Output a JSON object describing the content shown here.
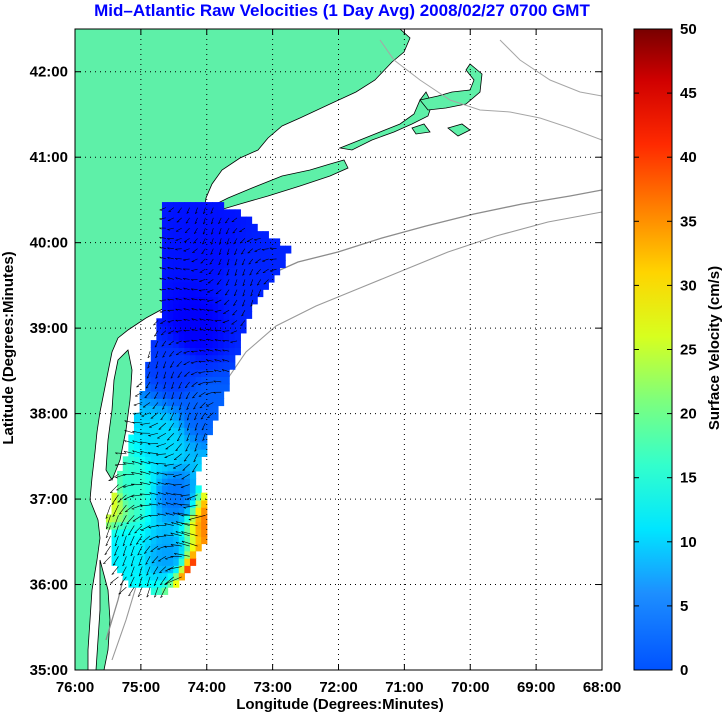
{
  "chart_data": {
    "type": "heatmap",
    "title": "Mid–Atlantic Raw Velocities (1 Day Avg) 2008/02/27 0700 GMT",
    "title_color": "#0000ff",
    "xlabel": "Longitude (Degrees:Minutes)",
    "ylabel": "Latitude (Degrees:Minutes)",
    "xlim": [
      -76,
      -68
    ],
    "ylim": [
      35,
      42.5
    ],
    "xticks": [
      {
        "value": -76,
        "label": "76:00"
      },
      {
        "value": -75,
        "label": "75:00"
      },
      {
        "value": -74,
        "label": "74:00"
      },
      {
        "value": -73,
        "label": "73:00"
      },
      {
        "value": -72,
        "label": "72:00"
      },
      {
        "value": -71,
        "label": "71:00"
      },
      {
        "value": -70,
        "label": "70:00"
      },
      {
        "value": -69,
        "label": "69:00"
      },
      {
        "value": -68,
        "label": "68:00"
      }
    ],
    "yticks": [
      {
        "value": 35,
        "label": "35:00"
      },
      {
        "value": 36,
        "label": "36:00"
      },
      {
        "value": 37,
        "label": "37:00"
      },
      {
        "value": 38,
        "label": "38:00"
      },
      {
        "value": 39,
        "label": "39:00"
      },
      {
        "value": 40,
        "label": "40:00"
      },
      {
        "value": 41,
        "label": "41:00"
      },
      {
        "value": 42,
        "label": "42:00"
      }
    ],
    "grid": "dotted",
    "land_color": "#5ef0a8",
    "colorbar": {
      "label": "Surface Velocity (cm/s)",
      "min": 0,
      "max": 50,
      "ticks": [
        {
          "value": 0,
          "label": "0"
        },
        {
          "value": 5,
          "label": "5"
        },
        {
          "value": 10,
          "label": "10"
        },
        {
          "value": 15,
          "label": "15"
        },
        {
          "value": 20,
          "label": "20"
        },
        {
          "value": 25,
          "label": "25"
        },
        {
          "value": 30,
          "label": "30"
        },
        {
          "value": 35,
          "label": "35"
        },
        {
          "value": 40,
          "label": "40"
        },
        {
          "value": 45,
          "label": "45"
        },
        {
          "value": 50,
          "label": "50"
        }
      ],
      "colormap": "jet"
    },
    "coverage_region": {
      "outline_lonlat": [
        [
          -74.7,
          40.45
        ],
        [
          -73.95,
          40.45
        ],
        [
          -73.55,
          40.3
        ],
        [
          -72.8,
          39.9
        ],
        [
          -72.95,
          39.6
        ],
        [
          -73.3,
          39.25
        ],
        [
          -73.55,
          38.75
        ],
        [
          -73.75,
          38.2
        ],
        [
          -74.0,
          37.7
        ],
        [
          -74.2,
          37.2
        ],
        [
          -74.0,
          36.85
        ],
        [
          -74.05,
          36.45
        ],
        [
          -74.45,
          36.0
        ],
        [
          -74.75,
          35.85
        ],
        [
          -75.2,
          35.95
        ],
        [
          -75.45,
          36.2
        ],
        [
          -75.55,
          36.7
        ],
        [
          -75.35,
          37.3
        ],
        [
          -75.05,
          38.1
        ],
        [
          -74.9,
          38.7
        ],
        [
          -74.7,
          39.3
        ],
        [
          -74.7,
          39.8
        ]
      ],
      "speed_blobs": [
        {
          "lon": -74.0,
          "lat": 39.9,
          "speed": 7
        },
        {
          "lon": -73.4,
          "lat": 39.5,
          "speed": 8
        },
        {
          "lon": -74.25,
          "lat": 38.95,
          "speed": 6
        },
        {
          "lon": -74.5,
          "lat": 38.5,
          "speed": 9
        },
        {
          "lon": -74.1,
          "lat": 38.0,
          "speed": 11
        },
        {
          "lon": -74.7,
          "lat": 37.6,
          "speed": 17
        },
        {
          "lon": -75.2,
          "lat": 37.1,
          "speed": 21
        },
        {
          "lon": -74.5,
          "lat": 37.0,
          "speed": 12
        },
        {
          "lon": -75.35,
          "lat": 36.35,
          "speed": 18
        },
        {
          "lon": -74.6,
          "lat": 36.3,
          "speed": 14
        },
        {
          "lon": -74.2,
          "lat": 36.05,
          "speed": 44
        },
        {
          "lon": -73.95,
          "lat": 36.7,
          "speed": 38
        },
        {
          "lon": -75.55,
          "lat": 36.95,
          "speed": 30
        }
      ],
      "vector_field": {
        "spacing_deg": 0.12,
        "dominant_direction": "southwest",
        "arrow_color": "#000000"
      }
    }
  }
}
